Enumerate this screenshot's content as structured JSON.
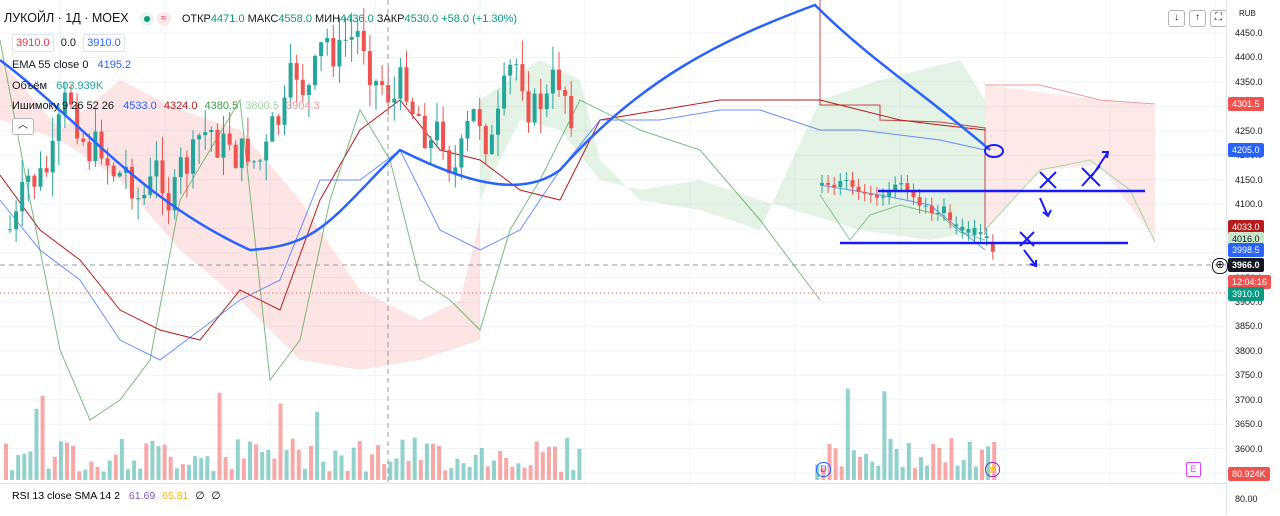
{
  "header": {
    "symbol_title": "ЛУКОЙЛ · 1Д · MOEX",
    "ohlc": {
      "open_label": "ОТКР",
      "open": "4471.0",
      "high_label": "МАКС",
      "high": "4558.0",
      "low_label": "МИН",
      "low": "4436.0",
      "close_label": "ЗАКР",
      "close": "4530.0",
      "change": "+58.0 (+1.30%)"
    },
    "bid": "3910.0",
    "spread": "0.0",
    "ask": "3910.0"
  },
  "indicators": {
    "ema": {
      "label": "EMA 55 close 0",
      "value": "4195.2"
    },
    "volume": {
      "label": "Объём",
      "value": "603.939K"
    },
    "ichimoku": {
      "label": "Ишимоку 9 26 52 26",
      "values": [
        "4533.0",
        "4324.0",
        "4380.5",
        "3800.5",
        "3904.3"
      ]
    },
    "rsi": {
      "label": "RSI 13 close SMA 14 2",
      "values": [
        "61.69",
        "65.81",
        "∅",
        "∅"
      ]
    }
  },
  "toolbar": {
    "icons": [
      "arrow-down-icon",
      "arrow-up-icon",
      "fullscreen-icon"
    ]
  },
  "price_axis": {
    "currency": "RUB",
    "ticks": [
      "4450.0",
      "4400.0",
      "4350.0",
      "4300.0",
      "4250.0",
      "4200.0",
      "4150.0",
      "4100.0",
      "4050.0",
      "4000.0",
      "3950.0",
      "3900.0",
      "3850.0",
      "3800.0",
      "3750.0",
      "3700.0",
      "3650.0",
      "3600.0",
      "3550.0"
    ],
    "badges": {
      "b4301": "4301.5",
      "b4205": "4205.0",
      "b4033": "4033.0",
      "b4016": "4016.0",
      "b3998": "3998.5",
      "cross": "3966.0",
      "countdown": "12:04:16",
      "last": "3910.0",
      "volume": "80.924K"
    },
    "rsi_tick": "80.00"
  },
  "markers": {
    "dividend": "D",
    "earnings": "E"
  },
  "colors": {
    "up": "#26a69a",
    "down": "#ef5350",
    "ema": "#2962ff",
    "drawing": "#1a1aff"
  }
}
